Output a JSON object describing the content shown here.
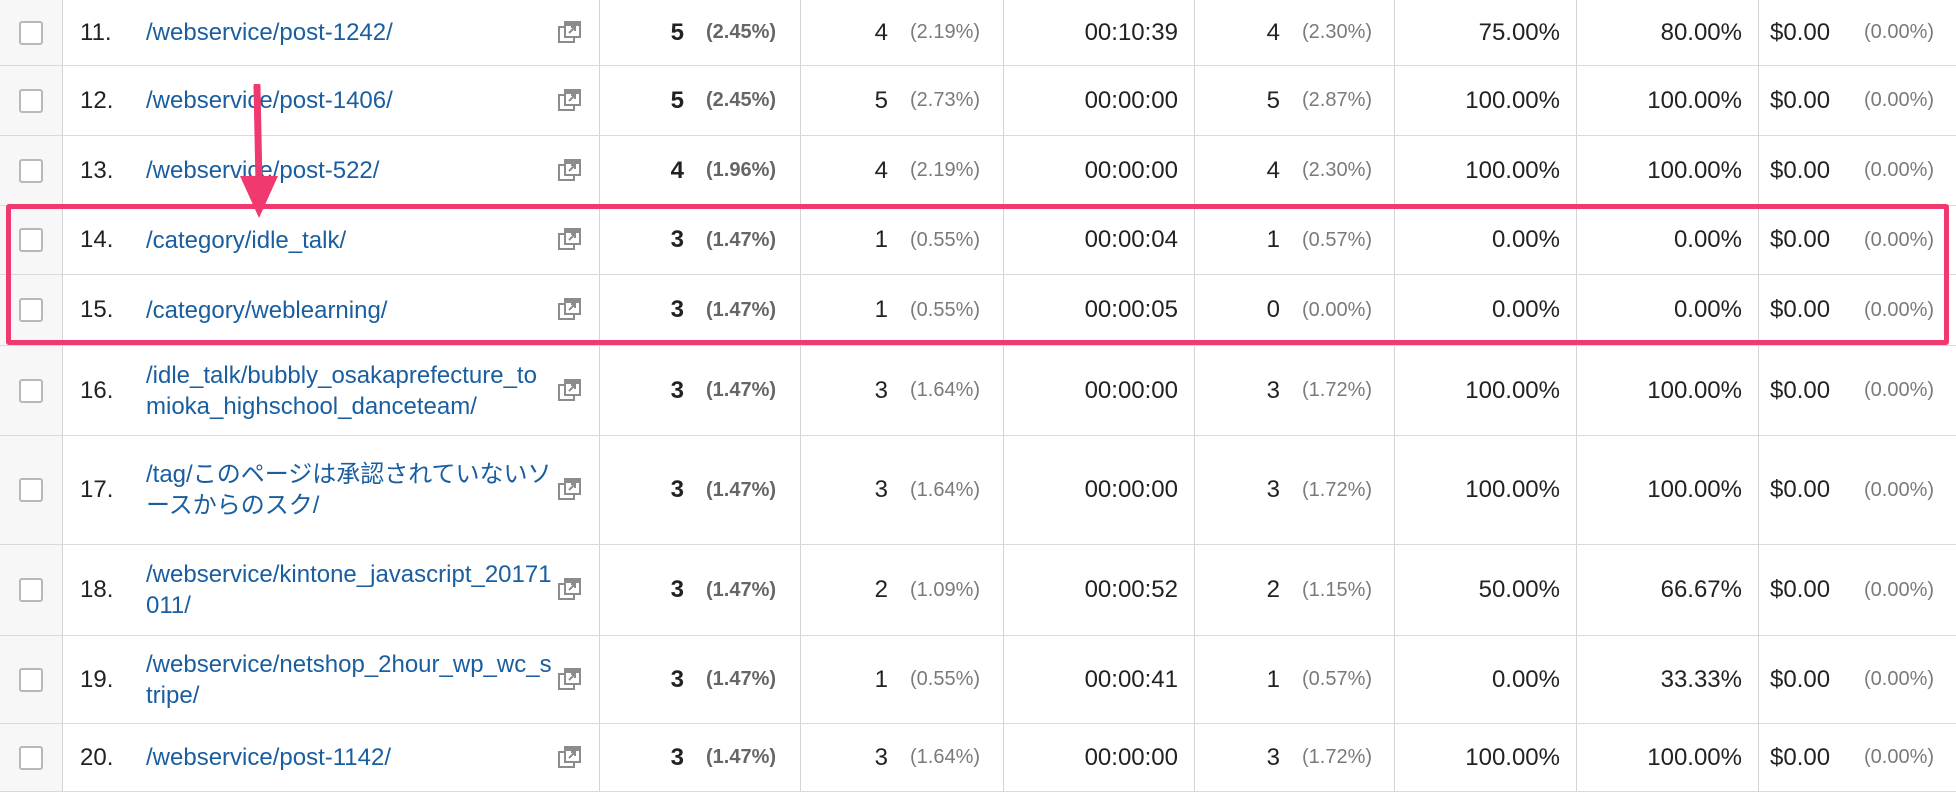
{
  "accent_color": "#f0396e",
  "link_color": "#1a5ea0",
  "icons": {
    "row_checkbox": "checkbox-icon",
    "open_in_new": "open-in-new-window-icon",
    "annotation": "down-arrow-icon"
  },
  "rows": [
    {
      "index": "11.",
      "page": "/webservice/post-1242/",
      "pageviews": "5",
      "pageviews_pct": "(2.45%)",
      "unique": "4",
      "unique_pct": "(2.19%)",
      "avg_time": "00:10:39",
      "entrances": "4",
      "entrances_pct": "(2.30%)",
      "bounce_rate": "75.00%",
      "exit_pct": "80.00%",
      "page_value": "$0.00",
      "page_value_pct": "(0.00%)"
    },
    {
      "index": "12.",
      "page": "/webservice/post-1406/",
      "pageviews": "5",
      "pageviews_pct": "(2.45%)",
      "unique": "5",
      "unique_pct": "(2.73%)",
      "avg_time": "00:00:00",
      "entrances": "5",
      "entrances_pct": "(2.87%)",
      "bounce_rate": "100.00%",
      "exit_pct": "100.00%",
      "page_value": "$0.00",
      "page_value_pct": "(0.00%)"
    },
    {
      "index": "13.",
      "page": "/webservice/post-522/",
      "pageviews": "4",
      "pageviews_pct": "(1.96%)",
      "unique": "4",
      "unique_pct": "(2.19%)",
      "avg_time": "00:00:00",
      "entrances": "4",
      "entrances_pct": "(2.30%)",
      "bounce_rate": "100.00%",
      "exit_pct": "100.00%",
      "page_value": "$0.00",
      "page_value_pct": "(0.00%)"
    },
    {
      "index": "14.",
      "page": "/category/idle_talk/",
      "pageviews": "3",
      "pageviews_pct": "(1.47%)",
      "unique": "1",
      "unique_pct": "(0.55%)",
      "avg_time": "00:00:04",
      "entrances": "1",
      "entrances_pct": "(0.57%)",
      "bounce_rate": "0.00%",
      "exit_pct": "0.00%",
      "page_value": "$0.00",
      "page_value_pct": "(0.00%)"
    },
    {
      "index": "15.",
      "page": "/category/weblearning/",
      "pageviews": "3",
      "pageviews_pct": "(1.47%)",
      "unique": "1",
      "unique_pct": "(0.55%)",
      "avg_time": "00:00:05",
      "entrances": "0",
      "entrances_pct": "(0.00%)",
      "bounce_rate": "0.00%",
      "exit_pct": "0.00%",
      "page_value": "$0.00",
      "page_value_pct": "(0.00%)"
    },
    {
      "index": "16.",
      "page": "/idle_talk/bubbly_osakaprefecture_tomioka_highschool_danceteam/",
      "pageviews": "3",
      "pageviews_pct": "(1.47%)",
      "unique": "3",
      "unique_pct": "(1.64%)",
      "avg_time": "00:00:00",
      "entrances": "3",
      "entrances_pct": "(1.72%)",
      "bounce_rate": "100.00%",
      "exit_pct": "100.00%",
      "page_value": "$0.00",
      "page_value_pct": "(0.00%)"
    },
    {
      "index": "17.",
      "page": "/tag/このページは承認されていないソースからのスク/",
      "pageviews": "3",
      "pageviews_pct": "(1.47%)",
      "unique": "3",
      "unique_pct": "(1.64%)",
      "avg_time": "00:00:00",
      "entrances": "3",
      "entrances_pct": "(1.72%)",
      "bounce_rate": "100.00%",
      "exit_pct": "100.00%",
      "page_value": "$0.00",
      "page_value_pct": "(0.00%)"
    },
    {
      "index": "18.",
      "page": "/webservice/kintone_javascript_20171011/",
      "pageviews": "3",
      "pageviews_pct": "(1.47%)",
      "unique": "2",
      "unique_pct": "(1.09%)",
      "avg_time": "00:00:52",
      "entrances": "2",
      "entrances_pct": "(1.15%)",
      "bounce_rate": "50.00%",
      "exit_pct": "66.67%",
      "page_value": "$0.00",
      "page_value_pct": "(0.00%)"
    },
    {
      "index": "19.",
      "page": "/webservice/netshop_2hour_wp_wc_stripe/",
      "pageviews": "3",
      "pageviews_pct": "(1.47%)",
      "unique": "1",
      "unique_pct": "(0.55%)",
      "avg_time": "00:00:41",
      "entrances": "1",
      "entrances_pct": "(0.57%)",
      "bounce_rate": "0.00%",
      "exit_pct": "33.33%",
      "page_value": "$0.00",
      "page_value_pct": "(0.00%)"
    },
    {
      "index": "20.",
      "page": "/webservice/post-1142/",
      "pageviews": "3",
      "pageviews_pct": "(1.47%)",
      "unique": "3",
      "unique_pct": "(1.64%)",
      "avg_time": "00:00:00",
      "entrances": "3",
      "entrances_pct": "(1.72%)",
      "bounce_rate": "100.00%",
      "exit_pct": "100.00%",
      "page_value": "$0.00",
      "page_value_pct": "(0.00%)"
    }
  ]
}
